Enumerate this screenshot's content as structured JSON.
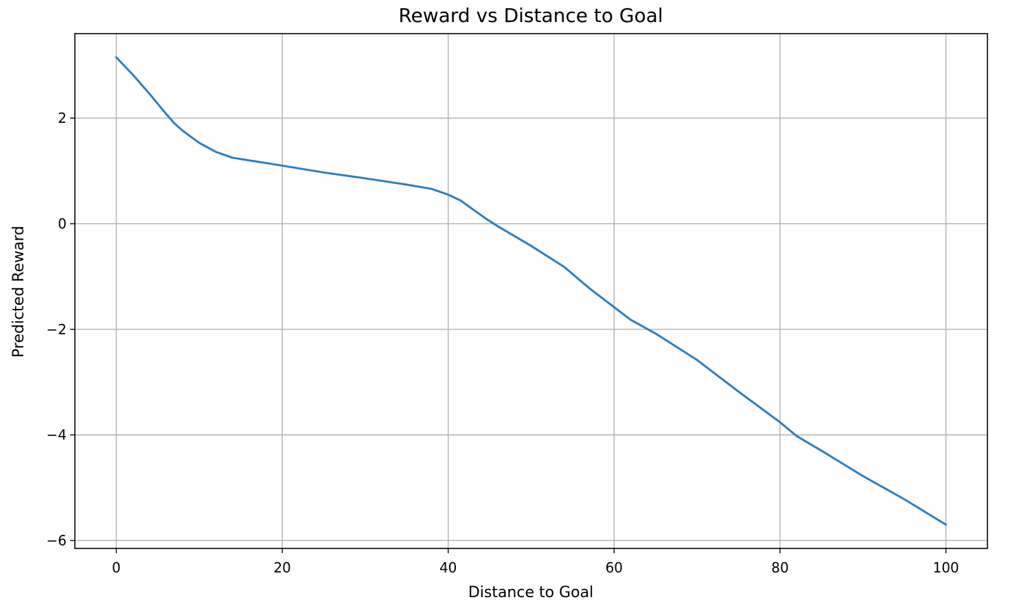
{
  "chart_data": {
    "type": "line",
    "title": "Reward vs Distance to Goal",
    "xlabel": "Distance to Goal",
    "ylabel": "Predicted Reward",
    "xlim": [
      -5,
      105
    ],
    "ylim": [
      -6.15,
      3.6
    ],
    "xticks": [
      0,
      20,
      40,
      60,
      80,
      100
    ],
    "yticks": [
      -6,
      -4,
      -2,
      0,
      2
    ],
    "xtick_labels": [
      "0",
      "20",
      "40",
      "60",
      "80",
      "100"
    ],
    "ytick_labels": [
      "−6",
      "−4",
      "−2",
      "0",
      "2"
    ],
    "grid": true,
    "series": [
      {
        "color": "#2e7ebc",
        "x": [
          0,
          2,
          4,
          6,
          7,
          8,
          10,
          12,
          14,
          16,
          20,
          25,
          30,
          35,
          38,
          40,
          41.5,
          43,
          44.5,
          46,
          50,
          54,
          57,
          60,
          62,
          65,
          70,
          75,
          80,
          82,
          85,
          90,
          95,
          100
        ],
        "y": [
          3.15,
          2.82,
          2.46,
          2.08,
          1.9,
          1.76,
          1.53,
          1.36,
          1.25,
          1.2,
          1.1,
          0.97,
          0.86,
          0.74,
          0.66,
          0.55,
          0.44,
          0.27,
          0.1,
          -0.05,
          -0.42,
          -0.82,
          -1.22,
          -1.58,
          -1.82,
          -2.08,
          -2.58,
          -3.18,
          -3.76,
          -4.02,
          -4.3,
          -4.78,
          -5.22,
          -5.7
        ]
      }
    ]
  }
}
